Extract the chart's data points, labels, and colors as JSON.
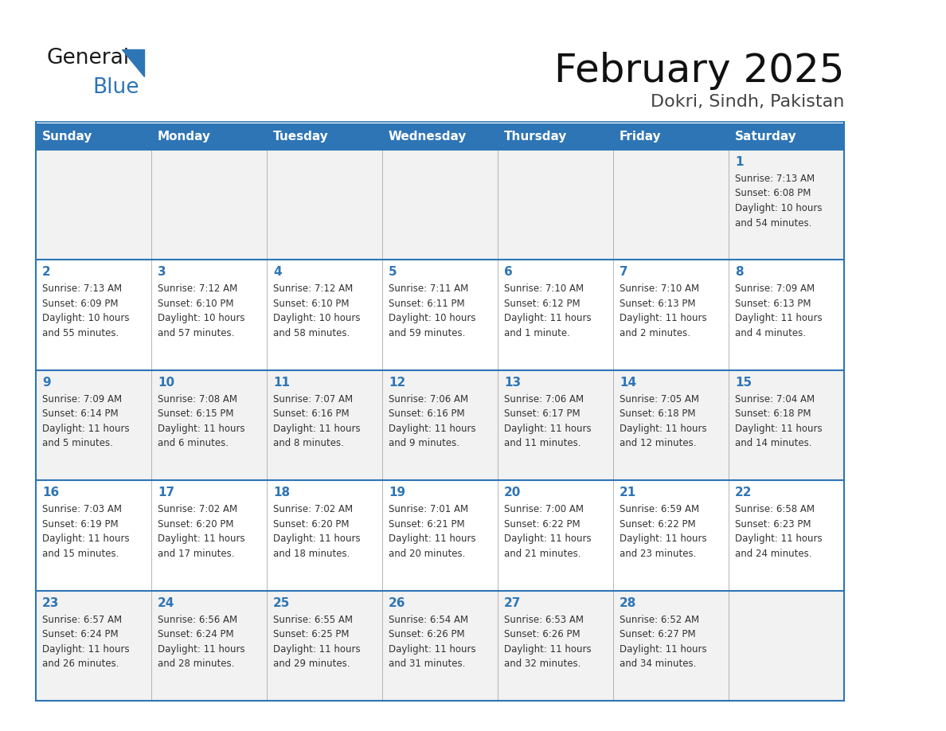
{
  "title": "February 2025",
  "subtitle": "Dokri, Sindh, Pakistan",
  "header_bg": "#2E75B6",
  "header_text_color": "#FFFFFF",
  "cell_border_color": "#2E75B6",
  "day_number_color": "#2E75B6",
  "detail_text_color": "#333333",
  "background_color": "#FFFFFF",
  "cell_bg_even": "#F2F2F2",
  "cell_bg_odd": "#FFFFFF",
  "days_of_week": [
    "Sunday",
    "Monday",
    "Tuesday",
    "Wednesday",
    "Thursday",
    "Friday",
    "Saturday"
  ],
  "calendar_data": [
    [
      {
        "day": null,
        "info": null
      },
      {
        "day": null,
        "info": null
      },
      {
        "day": null,
        "info": null
      },
      {
        "day": null,
        "info": null
      },
      {
        "day": null,
        "info": null
      },
      {
        "day": null,
        "info": null
      },
      {
        "day": 1,
        "info": "Sunrise: 7:13 AM\nSunset: 6:08 PM\nDaylight: 10 hours\nand 54 minutes."
      }
    ],
    [
      {
        "day": 2,
        "info": "Sunrise: 7:13 AM\nSunset: 6:09 PM\nDaylight: 10 hours\nand 55 minutes."
      },
      {
        "day": 3,
        "info": "Sunrise: 7:12 AM\nSunset: 6:10 PM\nDaylight: 10 hours\nand 57 minutes."
      },
      {
        "day": 4,
        "info": "Sunrise: 7:12 AM\nSunset: 6:10 PM\nDaylight: 10 hours\nand 58 minutes."
      },
      {
        "day": 5,
        "info": "Sunrise: 7:11 AM\nSunset: 6:11 PM\nDaylight: 10 hours\nand 59 minutes."
      },
      {
        "day": 6,
        "info": "Sunrise: 7:10 AM\nSunset: 6:12 PM\nDaylight: 11 hours\nand 1 minute."
      },
      {
        "day": 7,
        "info": "Sunrise: 7:10 AM\nSunset: 6:13 PM\nDaylight: 11 hours\nand 2 minutes."
      },
      {
        "day": 8,
        "info": "Sunrise: 7:09 AM\nSunset: 6:13 PM\nDaylight: 11 hours\nand 4 minutes."
      }
    ],
    [
      {
        "day": 9,
        "info": "Sunrise: 7:09 AM\nSunset: 6:14 PM\nDaylight: 11 hours\nand 5 minutes."
      },
      {
        "day": 10,
        "info": "Sunrise: 7:08 AM\nSunset: 6:15 PM\nDaylight: 11 hours\nand 6 minutes."
      },
      {
        "day": 11,
        "info": "Sunrise: 7:07 AM\nSunset: 6:16 PM\nDaylight: 11 hours\nand 8 minutes."
      },
      {
        "day": 12,
        "info": "Sunrise: 7:06 AM\nSunset: 6:16 PM\nDaylight: 11 hours\nand 9 minutes."
      },
      {
        "day": 13,
        "info": "Sunrise: 7:06 AM\nSunset: 6:17 PM\nDaylight: 11 hours\nand 11 minutes."
      },
      {
        "day": 14,
        "info": "Sunrise: 7:05 AM\nSunset: 6:18 PM\nDaylight: 11 hours\nand 12 minutes."
      },
      {
        "day": 15,
        "info": "Sunrise: 7:04 AM\nSunset: 6:18 PM\nDaylight: 11 hours\nand 14 minutes."
      }
    ],
    [
      {
        "day": 16,
        "info": "Sunrise: 7:03 AM\nSunset: 6:19 PM\nDaylight: 11 hours\nand 15 minutes."
      },
      {
        "day": 17,
        "info": "Sunrise: 7:02 AM\nSunset: 6:20 PM\nDaylight: 11 hours\nand 17 minutes."
      },
      {
        "day": 18,
        "info": "Sunrise: 7:02 AM\nSunset: 6:20 PM\nDaylight: 11 hours\nand 18 minutes."
      },
      {
        "day": 19,
        "info": "Sunrise: 7:01 AM\nSunset: 6:21 PM\nDaylight: 11 hours\nand 20 minutes."
      },
      {
        "day": 20,
        "info": "Sunrise: 7:00 AM\nSunset: 6:22 PM\nDaylight: 11 hours\nand 21 minutes."
      },
      {
        "day": 21,
        "info": "Sunrise: 6:59 AM\nSunset: 6:22 PM\nDaylight: 11 hours\nand 23 minutes."
      },
      {
        "day": 22,
        "info": "Sunrise: 6:58 AM\nSunset: 6:23 PM\nDaylight: 11 hours\nand 24 minutes."
      }
    ],
    [
      {
        "day": 23,
        "info": "Sunrise: 6:57 AM\nSunset: 6:24 PM\nDaylight: 11 hours\nand 26 minutes."
      },
      {
        "day": 24,
        "info": "Sunrise: 6:56 AM\nSunset: 6:24 PM\nDaylight: 11 hours\nand 28 minutes."
      },
      {
        "day": 25,
        "info": "Sunrise: 6:55 AM\nSunset: 6:25 PM\nDaylight: 11 hours\nand 29 minutes."
      },
      {
        "day": 26,
        "info": "Sunrise: 6:54 AM\nSunset: 6:26 PM\nDaylight: 11 hours\nand 31 minutes."
      },
      {
        "day": 27,
        "info": "Sunrise: 6:53 AM\nSunset: 6:26 PM\nDaylight: 11 hours\nand 32 minutes."
      },
      {
        "day": 28,
        "info": "Sunrise: 6:52 AM\nSunset: 6:27 PM\nDaylight: 11 hours\nand 34 minutes."
      },
      {
        "day": null,
        "info": null
      }
    ]
  ],
  "logo_text_general": "General",
  "logo_text_blue": "Blue",
  "logo_color_general": "#1a1a1a",
  "logo_color_blue": "#2E75B6",
  "logo_triangle_color": "#2E75B6",
  "title_fontsize": 36,
  "subtitle_fontsize": 16,
  "header_fontsize": 11,
  "day_num_fontsize": 11,
  "info_fontsize": 8.5
}
